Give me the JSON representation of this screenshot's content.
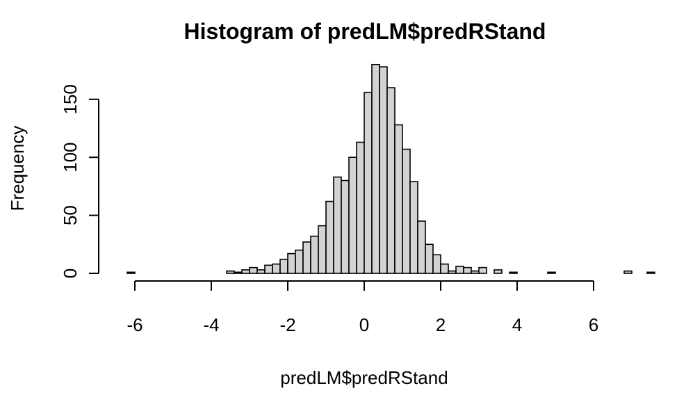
{
  "chart_data": {
    "type": "bar",
    "title": "Histogram of predLM$predRStand",
    "xlabel": "predLM$predRStand",
    "ylabel": "Frequency",
    "xlim": [
      -6.2,
      6.2
    ],
    "ylim": [
      0,
      180
    ],
    "x_ticks": [
      -6,
      -4,
      -2,
      0,
      2,
      4,
      6
    ],
    "x_tick_labels": [
      "-6",
      "-4",
      "-2",
      "0",
      "2",
      "4",
      "6"
    ],
    "y_ticks": [
      0,
      50,
      100,
      150
    ],
    "y_tick_labels": [
      "0",
      "50",
      "100",
      "150"
    ],
    "bin_width": 0.2,
    "bin_start": -6.2,
    "counts": [
      1,
      0,
      0,
      0,
      0,
      0,
      0,
      0,
      0,
      0,
      0,
      0,
      0,
      2,
      1,
      3,
      5,
      3,
      7,
      8,
      12,
      17,
      20,
      27,
      32,
      41,
      62,
      83,
      80,
      100,
      113,
      156,
      180,
      178,
      160,
      128,
      107,
      79,
      45,
      25,
      16,
      8,
      2,
      6,
      5,
      2,
      5,
      0,
      3,
      0,
      1,
      0,
      0,
      0,
      0,
      1,
      0,
      0,
      0,
      0,
      0,
      0,
      0,
      0,
      0,
      2,
      0,
      0,
      1,
      0,
      0,
      0,
      0,
      0,
      0,
      0,
      0,
      0,
      0,
      0,
      0,
      0,
      0,
      0,
      0,
      0,
      0,
      0,
      0,
      0,
      0,
      0,
      0,
      0,
      0,
      0,
      0,
      0,
      0,
      0,
      0,
      0,
      0,
      0,
      0,
      0,
      0,
      0,
      0,
      0,
      0,
      0,
      0,
      0,
      0,
      0,
      0,
      0,
      0,
      0,
      0,
      0,
      0,
      0
    ],
    "grid": false
  }
}
